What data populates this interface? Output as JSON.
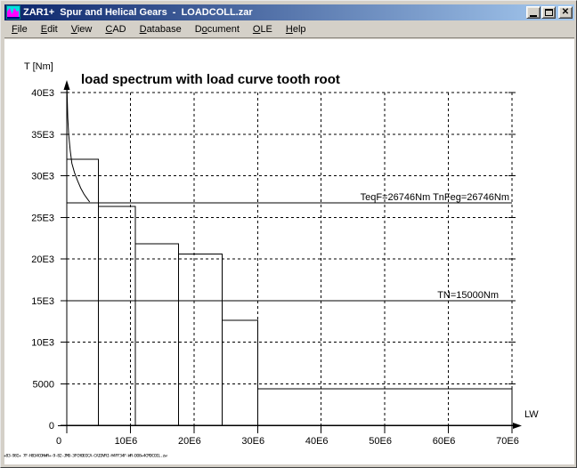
{
  "window": {
    "title": "ZAR1+  Spur and Helical Gears  -  LOADCOLL.zar",
    "icon": "zar1-gear-logo",
    "controls": [
      "minimize",
      "maximize",
      "close"
    ]
  },
  "menu": {
    "items": [
      {
        "label": "File",
        "accel": "F"
      },
      {
        "label": "Edit",
        "accel": "E"
      },
      {
        "label": "View",
        "accel": "V"
      },
      {
        "label": "CAD",
        "accel": "C"
      },
      {
        "label": "Database",
        "accel": "D"
      },
      {
        "label": "Document",
        "accel": "o"
      },
      {
        "label": "OLE",
        "accel": "O"
      },
      {
        "label": "Help",
        "accel": "H"
      }
    ]
  },
  "chart_data": {
    "type": "bar",
    "title": "load spectrum with load curve tooth root",
    "ylabel": "T [Nm]",
    "xlabel": "LW",
    "xlim": [
      0,
      70000000
    ],
    "ylim": [
      0,
      40000
    ],
    "grid": true,
    "yticks": [
      {
        "value": 0,
        "label": "0"
      },
      {
        "value": 5000,
        "label": "5000"
      },
      {
        "value": 10000,
        "label": "10E3"
      },
      {
        "value": 15000,
        "label": "15E3"
      },
      {
        "value": 20000,
        "label": "20E3"
      },
      {
        "value": 25000,
        "label": "25E3"
      },
      {
        "value": 30000,
        "label": "30E3"
      },
      {
        "value": 35000,
        "label": "35E3"
      },
      {
        "value": 40000,
        "label": "40E3"
      }
    ],
    "xticks": [
      {
        "value": 0,
        "label": "0"
      },
      {
        "value": 10000000,
        "label": "10E6"
      },
      {
        "value": 20000000,
        "label": "20E6"
      },
      {
        "value": 30000000,
        "label": "30E6"
      },
      {
        "value": 40000000,
        "label": "40E6"
      },
      {
        "value": 50000000,
        "label": "50E6"
      },
      {
        "value": 60000000,
        "label": "60E6"
      },
      {
        "value": 70000000,
        "label": "70E6"
      }
    ],
    "bars": [
      {
        "lw_from": 0,
        "lw_to": 5000000,
        "torque": 32000
      },
      {
        "lw_from": 5000000,
        "lw_to": 10800000,
        "torque": 26300
      },
      {
        "lw_from": 10800000,
        "lw_to": 17600000,
        "torque": 21800
      },
      {
        "lw_from": 17600000,
        "lw_to": 24400000,
        "torque": 20600
      },
      {
        "lw_from": 24400000,
        "lw_to": 30000000,
        "torque": 12600
      },
      {
        "lw_from": 30000000,
        "lw_to": 70000000,
        "torque": 4400
      }
    ],
    "ref_lines": [
      {
        "label": "TeqF=26746Nm  TnFeg=26746Nm",
        "value": 26746
      },
      {
        "label": "TN=15000Nm",
        "value": 15000
      }
    ],
    "load_curve": [
      [
        20000,
        40900
      ],
      [
        150000,
        37000
      ],
      [
        300000,
        35000
      ],
      [
        550000,
        33000
      ],
      [
        800000,
        31500
      ],
      [
        1200000,
        30400
      ],
      [
        1700000,
        29400
      ],
      [
        2200000,
        28500
      ],
      [
        2700000,
        27800
      ],
      [
        3150000,
        27300
      ],
      [
        3600000,
        26850
      ]
    ]
  },
  "footer_text": "+83-98I+ 7F-H834COHWR+-9-82-JM0-3FCHODICA-CAIDVRI-H4FF34F-WR-DO8+4CMDCOIL.zw",
  "colors": {
    "titlebar_left": "#0a246a",
    "titlebar_right": "#a6caf0",
    "chrome": "#d4d0c8",
    "client_bg": "#ffffff",
    "ink": "#000000"
  }
}
